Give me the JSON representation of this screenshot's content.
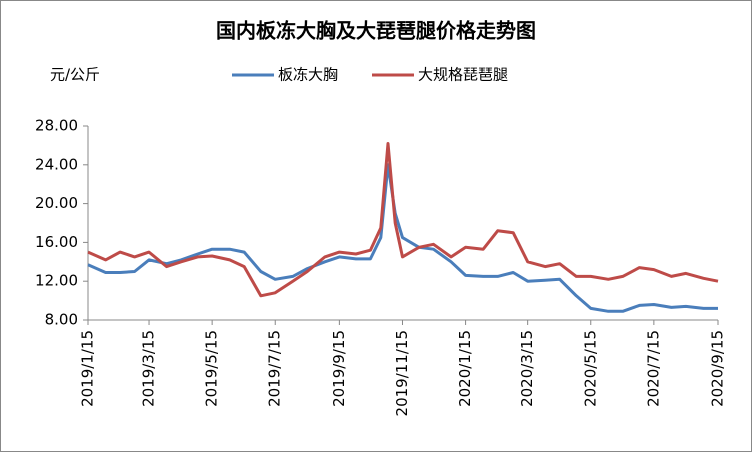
{
  "chart_data": {
    "type": "line",
    "title": "国内板冻大胸及大琵琶腿价格走势图",
    "y_label": "元/公斤",
    "x": [
      "2019/1/15",
      "2019/2/1",
      "2019/2/15",
      "2019/3/1",
      "2019/3/15",
      "2019/4/1",
      "2019/4/15",
      "2019/5/1",
      "2019/5/15",
      "2019/6/1",
      "2019/6/15",
      "2019/7/1",
      "2019/7/15",
      "2019/8/1",
      "2019/8/15",
      "2019/9/1",
      "2019/9/15",
      "2019/10/1",
      "2019/10/15",
      "2019/10/25",
      "2019/11/1",
      "2019/11/8",
      "2019/11/15",
      "2019/12/1",
      "2019/12/15",
      "2020/1/1",
      "2020/1/15",
      "2020/2/1",
      "2020/2/15",
      "2020/3/1",
      "2020/3/15",
      "2020/4/1",
      "2020/4/15",
      "2020/5/1",
      "2020/5/15",
      "2020/6/1",
      "2020/6/15",
      "2020/7/1",
      "2020/7/15",
      "2020/8/1",
      "2020/8/15",
      "2020/9/1",
      "2020/9/15"
    ],
    "series": [
      {
        "name": "板冻大胸",
        "color": "#4a7ebb",
        "values": [
          13.7,
          12.9,
          12.9,
          13.0,
          14.2,
          13.8,
          14.2,
          14.8,
          15.3,
          15.3,
          15.0,
          13.0,
          12.2,
          12.5,
          13.3,
          14.0,
          14.5,
          14.3,
          14.3,
          16.5,
          24.0,
          19.0,
          16.5,
          15.5,
          15.3,
          14.0,
          12.6,
          12.5,
          12.5,
          12.9,
          12.0,
          12.1,
          12.2,
          10.5,
          9.2,
          8.9,
          8.9,
          9.5,
          9.6,
          9.3,
          9.4,
          9.2,
          9.2
        ]
      },
      {
        "name": "大规格琵琶腿",
        "color": "#be4b48",
        "values": [
          15.0,
          14.2,
          15.0,
          14.5,
          15.0,
          13.5,
          14.0,
          14.5,
          14.6,
          14.2,
          13.5,
          10.5,
          10.8,
          12.0,
          13.0,
          14.5,
          15.0,
          14.8,
          15.2,
          17.5,
          26.2,
          18.0,
          14.5,
          15.5,
          15.8,
          14.5,
          15.5,
          15.3,
          17.2,
          17.0,
          14.0,
          13.5,
          13.8,
          12.5,
          12.5,
          12.2,
          12.5,
          13.4,
          13.2,
          12.5,
          12.8,
          12.3,
          12.0
        ]
      }
    ],
    "xlim": [
      "2019/1/15",
      "2020/9/15"
    ],
    "xticks": [
      "2019/1/15",
      "2019/3/15",
      "2019/5/15",
      "2019/7/15",
      "2019/9/15",
      "2019/11/15",
      "2020/1/15",
      "2020/3/15",
      "2020/5/15",
      "2020/7/15",
      "2020/9/15"
    ],
    "ylim": [
      8,
      28
    ],
    "yticks": [
      {
        "value": 8,
        "label": "8.00"
      },
      {
        "value": 12,
        "label": "12.00"
      },
      {
        "value": 16,
        "label": "16.00"
      },
      {
        "value": 20,
        "label": "20.00"
      },
      {
        "value": 24,
        "label": "24.00"
      },
      {
        "value": 28,
        "label": "28.00"
      }
    ],
    "legend": "top"
  }
}
